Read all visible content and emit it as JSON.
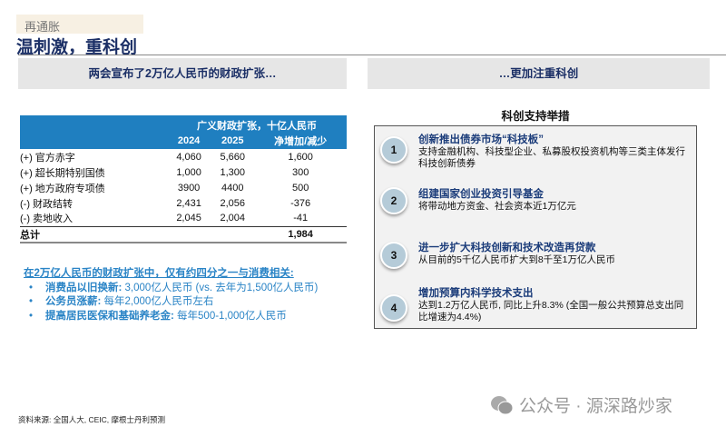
{
  "header": {
    "tag": "再通胀",
    "title": "温刺激，重科创"
  },
  "left": {
    "heading": "两会宣布了2万亿人民币的财政扩张…",
    "table": {
      "group_header": "广义财政扩张，十亿人民币",
      "columns": [
        "2024",
        "2025",
        "净增加/减少"
      ],
      "rows": [
        {
          "label": "(+) 官方赤字",
          "v2024": "4,060",
          "v2025": "5,660",
          "net": "1,600"
        },
        {
          "label": "(+) 超长期特别国债",
          "v2024": "1,000",
          "v2025": "1,300",
          "net": "300"
        },
        {
          "label": "(+) 地方政府专项债",
          "v2024": "3900",
          "v2025": "4400",
          "net": "500"
        },
        {
          "label": "(-) 财政结转",
          "v2024": "2,431",
          "v2025": "2,056",
          "net": "-376"
        },
        {
          "label": "(-) 卖地收入",
          "v2024": "2,045",
          "v2025": "2,004",
          "net": "-41"
        }
      ],
      "total": {
        "label": "总计",
        "net": "1,984"
      }
    },
    "notes": {
      "heading": "在2万亿人民币的财政扩张中，仅有约四分之一与消费相关:",
      "items": [
        {
          "bold": "消费品以旧换新:",
          "text": " 3,000亿人民币 (vs. 去年为1,500亿人民币)"
        },
        {
          "bold": "公务员涨薪:",
          "text": " 每年2,000亿人民币左右"
        },
        {
          "bold": "提高居民医保和基础养老金:",
          "text": " 每年500-1,000亿人民币"
        }
      ]
    }
  },
  "right": {
    "heading": "…更加注重科创",
    "subtitle": "科创支持举措",
    "items": [
      {
        "num": "1",
        "title": "创新推出债券市场“科技板”",
        "desc": "支持金融机构、科技型企业、私募股权投资机构等三类主体发行科技创新债券"
      },
      {
        "num": "2",
        "title": "组建国家创业投资引导基金",
        "desc": "将带动地方资金、社会资本近1万亿元"
      },
      {
        "num": "3",
        "title": "进一步扩大科技创新和技术改造再贷款",
        "desc": "从目前的5千亿人民币扩大到8千至1万亿人民币"
      },
      {
        "num": "4",
        "title": "增加预算内科学技术支出",
        "desc": "达到1.2万亿人民币, 同比上升8.3% (全国一般公共预算总支出同比增速为4.4%)"
      }
    ]
  },
  "footer": {
    "source": "资料来源: 全国人大, CEIC, 摩根士丹利预测",
    "watermark": "公众号 · 源深路炒家"
  },
  "colors": {
    "title": "#1b2f66",
    "table_header": "#1f7fc0",
    "notes": "#2a84c6"
  }
}
